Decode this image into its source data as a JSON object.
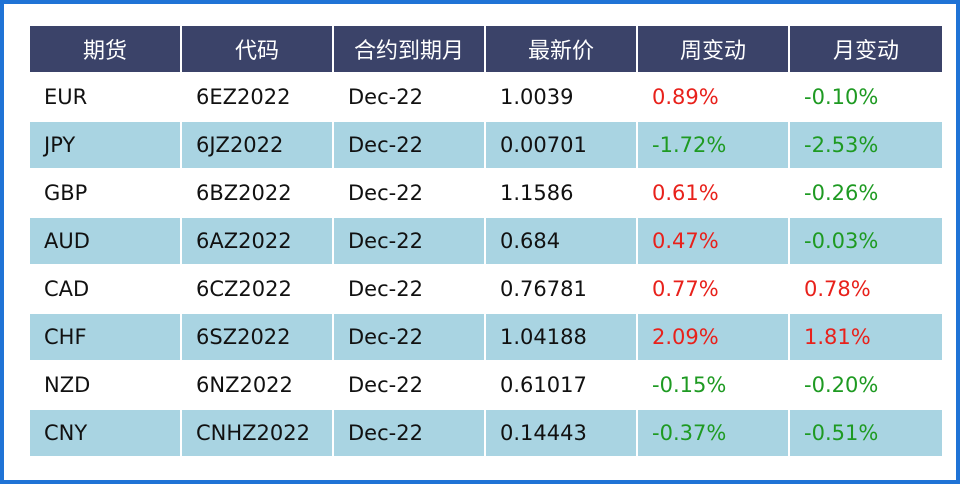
{
  "colors": {
    "border": "#1f73d6",
    "header_bg": "#3b4369",
    "stripe_bg": "#a9d4e2",
    "positive": "#e8211b",
    "negative": "#1e9a22"
  },
  "headers": [
    "期货",
    "代码",
    "合约到期月",
    "最新价",
    "周变动",
    "月变动"
  ],
  "rows": [
    {
      "name": "EUR",
      "code": "6EZ2022",
      "expiry": "Dec-22",
      "price": "1.0039",
      "week": "0.89%",
      "month": "-0.10%"
    },
    {
      "name": "JPY",
      "code": "6JZ2022",
      "expiry": "Dec-22",
      "price": "0.00701",
      "week": "-1.72%",
      "month": "-2.53%"
    },
    {
      "name": "GBP",
      "code": "6BZ2022",
      "expiry": "Dec-22",
      "price": "1.1586",
      "week": "0.61%",
      "month": "-0.26%"
    },
    {
      "name": "AUD",
      "code": "6AZ2022",
      "expiry": "Dec-22",
      "price": "0.684",
      "week": "0.47%",
      "month": "-0.03%"
    },
    {
      "name": "CAD",
      "code": "6CZ2022",
      "expiry": "Dec-22",
      "price": "0.76781",
      "week": "0.77%",
      "month": "0.78%"
    },
    {
      "name": "CHF",
      "code": "6SZ2022",
      "expiry": "Dec-22",
      "price": "1.04188",
      "week": "2.09%",
      "month": "1.81%"
    },
    {
      "name": "NZD",
      "code": "6NZ2022",
      "expiry": "Dec-22",
      "price": "0.61017",
      "week": "-0.15%",
      "month": "-0.20%"
    },
    {
      "name": "CNY",
      "code": "CNHZ2022",
      "expiry": "Dec-22",
      "price": "0.14443",
      "week": "-0.37%",
      "month": "-0.51%"
    }
  ]
}
